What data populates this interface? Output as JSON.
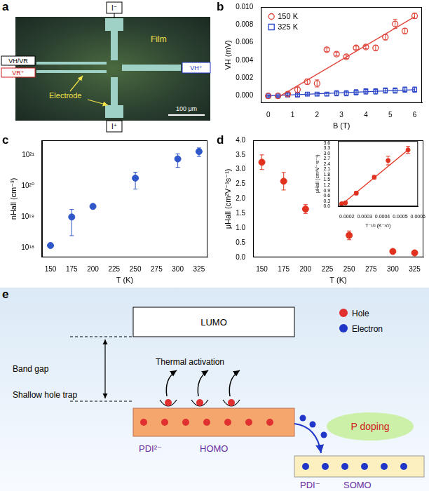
{
  "panel_a": {
    "title": "a",
    "film": "Film",
    "electrode": "Electrode",
    "scale_bar": "100 μm",
    "terminals": {
      "top": "I⁻",
      "bottom": "I⁺",
      "left_upper": "VH/VR",
      "left_lower": "VR⁺",
      "right": "VH⁺"
    }
  },
  "chart_data": [
    {
      "title": "b",
      "type": "scatter",
      "x_label": "B (T)",
      "y_label": "VH (mV)",
      "xlim": [
        -0.3,
        6.3
      ],
      "xticks": [
        0,
        1,
        2,
        3,
        4,
        5,
        6
      ],
      "ylim": [
        -0.0008,
        0.01
      ],
      "yticks": [
        {
          "value": 0,
          "label": "0.000"
        },
        {
          "value": 0.002,
          "label": "0.002"
        },
        {
          "value": 0.004,
          "label": "0.004"
        },
        {
          "value": 0.006,
          "label": "0.006"
        },
        {
          "value": 0.008,
          "label": "0.008"
        },
        {
          "value": 0.01,
          "label": "0.010"
        }
      ],
      "grid": false,
      "legend": "upper left",
      "series": [
        {
          "name": "150 K",
          "color": "#e0463c",
          "marker": "open_circle",
          "x": [
            0,
            0.4,
            0.8,
            1.2,
            1.6,
            2.0,
            2.4,
            2.8,
            3.2,
            3.6,
            4.0,
            4.4,
            4.8,
            5.2,
            5.6,
            6.0
          ],
          "values": [
            0,
            0,
            0.0002,
            0.0007,
            0.0016,
            0.0014,
            0.0052,
            0.0047,
            0.0044,
            0.0054,
            0.0055,
            0.0054,
            0.0066,
            0.0081,
            0.0073,
            0.009
          ],
          "errors": [
            0,
            0.0001,
            0.0002,
            0.0003,
            0.0003,
            0.0004,
            0.0002,
            0.0002,
            0.0002,
            0.0002,
            0.0002,
            0.0003,
            0.0003,
            0.0005,
            0.0003,
            0.0003
          ]
        },
        {
          "name": "325 K",
          "color": "#2b45c8",
          "marker": "open_square",
          "x": [
            0,
            0.4,
            0.8,
            1.2,
            1.6,
            2.0,
            2.4,
            2.8,
            3.2,
            3.6,
            4.0,
            4.4,
            4.8,
            5.2,
            5.6,
            6.0
          ],
          "values": [
            0,
            0,
            0.0001,
            0.0001,
            0.0002,
            0.0002,
            0.0002,
            0.0003,
            0.0003,
            0.0004,
            0.0005,
            0.0005,
            0.0006,
            0.0006,
            0.0007,
            0.0007
          ],
          "errors": [
            0.0001,
            0.0001,
            0.0002,
            0.0002,
            0.0002,
            0.0002,
            0.0002,
            0.0003,
            0.0003,
            0.0003,
            0.0003,
            0.0003,
            0.0003,
            0.0003,
            0.0003,
            0.0003
          ]
        }
      ],
      "fit_lines": [
        {
          "color": "#e0463c",
          "x": [
            0.5,
            6
          ],
          "values": [
            0,
            0.0089
          ]
        },
        {
          "color": "#2b45c8",
          "x": [
            0,
            6
          ],
          "values": [
            0,
            0.0007
          ]
        }
      ]
    },
    {
      "title": "c",
      "type": "scatter",
      "x_label": "T (K)",
      "y_label": "nHall (cm⁻³)",
      "log": "y",
      "xlim": [
        140,
        335
      ],
      "xticks": [
        150,
        175,
        200,
        225,
        250,
        275,
        300,
        325
      ],
      "ylim": [
        5e+17,
        3e+21
      ],
      "yticks": [
        {
          "value": 1e+18,
          "label": "10¹⁸"
        },
        {
          "value": 1e+19,
          "label": "10¹⁹"
        },
        {
          "value": 1e+20,
          "label": "10²⁰"
        },
        {
          "value": 1e+21,
          "label": "10²¹"
        }
      ],
      "grid": false,
      "series": [
        {
          "color": "#2f57c9",
          "marker": "circle",
          "x": [
            150,
            175,
            200,
            250,
            300,
            325
          ],
          "values": [
            1.2e+18,
            1e+19,
            2.2e+19,
            1.8e+20,
            7.5e+20,
            1.3e+21
          ],
          "errors": [
            2e+17,
            7.5e+18,
            2e+18,
            1e+20,
            3.5e+20,
            4e+20
          ]
        }
      ]
    },
    {
      "title": "d",
      "type": "scatter",
      "x_label": "T (K)",
      "y_label": "μHall (cm²V⁻¹s⁻¹)",
      "xlim": [
        140,
        335
      ],
      "xticks": [
        150,
        175,
        200,
        225,
        250,
        275,
        300,
        325
      ],
      "ylim": [
        0,
        4
      ],
      "yticks": [
        {
          "value": 0,
          "label": "0.0"
        },
        0.5,
        {
          "value": 1,
          "label": "1.0"
        },
        1.5,
        {
          "value": 2,
          "label": "2.0"
        },
        2.5,
        {
          "value": 3,
          "label": "3.0"
        },
        3.5,
        {
          "value": 4,
          "label": "4.0"
        }
      ],
      "grid": false,
      "series": [
        {
          "color": "#e0321e",
          "marker": "circle",
          "x": [
            150,
            175,
            200,
            250,
            300,
            325
          ],
          "values": [
            3.25,
            2.6,
            1.65,
            0.75,
            0.2,
            0.15
          ],
          "errors": [
            0.25,
            0.3,
            0.15,
            0.15,
            0.05,
            0.03
          ]
        }
      ]
    },
    {
      "type": "scatter",
      "x_label": "T⁻³/² (K⁻³/²)",
      "y_label": "μHall (cm²V⁻¹s⁻¹)",
      "xlim": [
        0.00015,
        0.0006
      ],
      "xticks": [
        0.0002,
        0.0003,
        0.0004,
        0.0005,
        0.0006
      ],
      "ylim": [
        0,
        3.7
      ],
      "yticks": [
        {
          "value": 0,
          "label": "0.0"
        },
        0.3,
        0.6,
        0.9,
        1.2,
        1.5,
        1.8,
        2.1,
        2.4,
        2.7,
        {
          "value": 3,
          "label": "3.0"
        },
        3.3,
        3.6
      ],
      "grid": false,
      "series": [
        {
          "color": "#e0321e",
          "marker": "circle",
          "x": [
            0.000171,
            0.000192,
            0.000253,
            0.000354,
            0.000432,
            0.000544
          ],
          "values": [
            0.15,
            0.2,
            0.75,
            1.65,
            2.6,
            3.2
          ],
          "errors": [
            0.03,
            0.05,
            0.1,
            0.1,
            0.25,
            0.2
          ]
        }
      ],
      "fit_lines": [
        {
          "color": "#e0321e",
          "x": [
            0.00017,
            0.00055
          ],
          "values": [
            0.1,
            3.25
          ]
        }
      ]
    }
  ],
  "panel_e": {
    "title": "e",
    "lumo": "LUMO",
    "band_gap": "Band gap",
    "trap": "Shallow hole trap",
    "activation": "Thermal activation",
    "homo_species": "PDI²⁻",
    "homo": "HOMO",
    "somo_species": "PDI⁻",
    "somo": "SOMO",
    "doping": "P doping",
    "particles": [
      {
        "name": "Hole",
        "color": "#e03030"
      },
      {
        "name": "Electron",
        "color": "#2036c8"
      }
    ]
  }
}
